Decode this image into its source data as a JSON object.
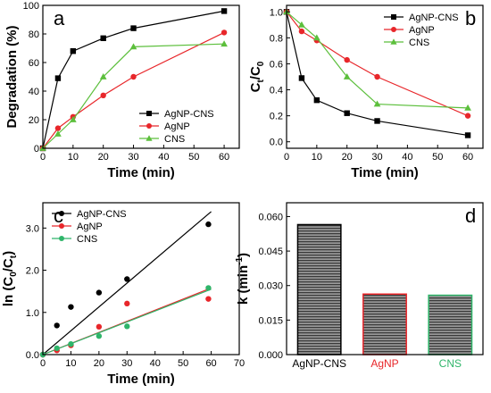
{
  "chart_data": [
    {
      "panel": "a",
      "type": "line",
      "xlabel": "Time (min)",
      "ylabel": "Degradation (%)",
      "xlim": [
        0,
        65
      ],
      "ylim": [
        0,
        100
      ],
      "xticks": [
        0,
        10,
        20,
        30,
        40,
        50,
        60
      ],
      "yticks": [
        0,
        20,
        40,
        60,
        80,
        100
      ],
      "legend_position": "bottom-right",
      "grid": false,
      "series": [
        {
          "name": "AgNP-CNS",
          "color": "#000000",
          "marker": "square",
          "x": [
            0,
            5,
            10,
            20,
            30,
            60
          ],
          "y": [
            0,
            49,
            68,
            77,
            84,
            96
          ]
        },
        {
          "name": "AgNP",
          "color": "#e8262a",
          "marker": "circle",
          "x": [
            0,
            5,
            10,
            20,
            30,
            60
          ],
          "y": [
            0,
            14,
            22,
            37,
            50,
            81
          ]
        },
        {
          "name": "CNS",
          "color": "#5cbf3c",
          "marker": "triangle",
          "x": [
            0,
            5,
            10,
            20,
            30,
            60
          ],
          "y": [
            0,
            10,
            20,
            50,
            71,
            73
          ]
        }
      ]
    },
    {
      "panel": "b",
      "type": "line",
      "xlabel": "Time (min)",
      "ylabel": "Ct/C0",
      "xlim": [
        0,
        65
      ],
      "ylim": [
        -0.05,
        1.05
      ],
      "xticks": [
        0,
        10,
        20,
        30,
        40,
        50,
        60
      ],
      "yticks": [
        0.0,
        0.2,
        0.4,
        0.6,
        0.8,
        1.0
      ],
      "ytick_labels": [
        "0.0",
        "0.2",
        "0.4",
        "0.6",
        "0.8",
        "1.0"
      ],
      "legend_position": "top-right",
      "grid": false,
      "series": [
        {
          "name": "AgNP-CNS",
          "color": "#000000",
          "marker": "square",
          "x": [
            0,
            5,
            10,
            20,
            30,
            60
          ],
          "y": [
            1.0,
            0.49,
            0.32,
            0.22,
            0.16,
            0.05
          ]
        },
        {
          "name": "AgNP",
          "color": "#e8262a",
          "marker": "circle",
          "x": [
            0,
            5,
            10,
            20,
            30,
            60
          ],
          "y": [
            1.0,
            0.85,
            0.78,
            0.63,
            0.5,
            0.2
          ]
        },
        {
          "name": "CNS",
          "color": "#5cbf3c",
          "marker": "triangle",
          "x": [
            0,
            5,
            10,
            20,
            30,
            60
          ],
          "y": [
            1.0,
            0.9,
            0.8,
            0.5,
            0.29,
            0.26
          ]
        }
      ]
    },
    {
      "panel": "c",
      "type": "scatter",
      "xlabel": "Time (min)",
      "ylabel": "ln (C0/Ct)",
      "xlim": [
        0,
        70
      ],
      "ylim": [
        0,
        3.6
      ],
      "xticks": [
        0,
        10,
        20,
        30,
        40,
        50,
        60,
        70
      ],
      "yticks": [
        0.0,
        1.0,
        2.0,
        3.0
      ],
      "ytick_labels": [
        "0.0",
        "1.0",
        "2.0",
        "3.0"
      ],
      "legend_position": "top-left",
      "grid": false,
      "series": [
        {
          "name": "AgNP-CNS",
          "color": "#000000",
          "marker": "circle",
          "x": [
            0,
            5,
            10,
            20,
            30,
            59
          ],
          "y": [
            0,
            0.69,
            1.13,
            1.47,
            1.79,
            3.09
          ],
          "fit": {
            "x": [
              0,
              60
            ],
            "y": [
              0,
              3.39
            ]
          }
        },
        {
          "name": "AgNP",
          "color": "#e8262a",
          "marker": "circle",
          "x": [
            0,
            5,
            10,
            20,
            30,
            59
          ],
          "y": [
            0,
            0.1,
            0.22,
            0.66,
            1.21,
            1.32
          ],
          "fit": {
            "x": [
              0,
              60
            ],
            "y": [
              0,
              1.58
            ]
          }
        },
        {
          "name": "CNS",
          "color": "#2fb56a",
          "marker": "circle",
          "x": [
            0,
            5,
            10,
            20,
            30,
            59
          ],
          "y": [
            0,
            0.15,
            0.25,
            0.44,
            0.67,
            1.58
          ],
          "fit": {
            "x": [
              0,
              60
            ],
            "y": [
              0,
              1.55
            ]
          }
        }
      ]
    },
    {
      "panel": "d",
      "type": "bar",
      "ylabel": "k (min-1)",
      "categories": [
        "AgNP-CNS",
        "AgNP",
        "CNS"
      ],
      "category_colors": [
        "#000000",
        "#e8262a",
        "#2fb56a"
      ],
      "values": [
        0.0565,
        0.0263,
        0.0258
      ],
      "ylim": [
        0,
        0.066
      ],
      "yticks": [
        0.0,
        0.015,
        0.03,
        0.045,
        0.06
      ],
      "ytick_labels": [
        "0.000",
        "0.015",
        "0.030",
        "0.045",
        "0.060"
      ],
      "bar_fill": "hatched-gray",
      "grid": false
    }
  ]
}
